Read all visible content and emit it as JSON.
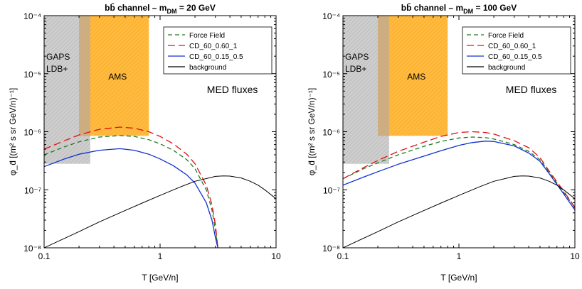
{
  "chart_data": [
    {
      "type": "line",
      "title": "bb̄ channel – m_DM = 20 GeV",
      "title_main": "bb̄ channel – m",
      "title_sub": "DM",
      "title_tail": " = 20 GeV",
      "xlabel": "T [GeV/n]",
      "ylabel": "φ_d̄ [(m² s sr GeV/n)⁻¹]",
      "xscale": "log",
      "yscale": "log",
      "xlim": [
        0.1,
        10
      ],
      "ylim": [
        1e-08,
        0.0001
      ],
      "x_tick_labels": [
        "0.1",
        "1",
        "10"
      ],
      "y_tick_labels": [
        "10⁻⁸",
        "10⁻⁷",
        "10⁻⁶",
        "10⁻⁵",
        "10⁻⁴"
      ],
      "annotation": "MED fluxes",
      "legend_position": "top-right",
      "regions": [
        {
          "name": "GAPS LDB+",
          "label_lines": [
            "GAPS",
            "LDB+"
          ],
          "x": [
            0.1,
            0.25
          ],
          "y": [
            2.8e-07,
            0.0001
          ],
          "color": "#c0c0c0"
        },
        {
          "name": "AMS",
          "label_lines": [
            "AMS"
          ],
          "x": [
            0.2,
            0.8
          ],
          "y": [
            8.5e-07,
            0.0001
          ],
          "color": "#ffae1a"
        }
      ],
      "series": [
        {
          "name": "Force Field",
          "color": "#1e7a1e",
          "dash": "dashed",
          "x": [
            0.1,
            0.15,
            0.2,
            0.3,
            0.45,
            0.6,
            0.8,
            1.0,
            1.3,
            1.7,
            2.0,
            2.5,
            2.8,
            3.0,
            3.15
          ],
          "y": [
            4e-07,
            5.5e-07,
            6.7e-07,
            8.1e-07,
            8.6e-07,
            8.3e-07,
            7.3e-07,
            6.2e-07,
            4.8e-07,
            3.3e-07,
            2.3e-07,
            1e-07,
            4.5e-08,
            2e-08,
            1e-08
          ]
        },
        {
          "name": "CD_60_0.60_1",
          "color": "#e01010",
          "dash": "longdash",
          "x": [
            0.1,
            0.15,
            0.2,
            0.3,
            0.45,
            0.6,
            0.8,
            1.0,
            1.3,
            1.7,
            2.0,
            2.5,
            2.8,
            3.0,
            3.15
          ],
          "y": [
            5e-07,
            7e-07,
            8.8e-07,
            1.1e-06,
            1.2e-06,
            1.15e-06,
            1e-06,
            8.3e-07,
            6.2e-07,
            4.1e-07,
            2.8e-07,
            1.2e-07,
            5.5e-08,
            2.5e-08,
            1e-08
          ]
        },
        {
          "name": "CD_60_0.15_0.5",
          "color": "#1030d0",
          "dash": "solid",
          "x": [
            0.1,
            0.15,
            0.2,
            0.3,
            0.45,
            0.6,
            0.8,
            1.0,
            1.3,
            1.7,
            2.0,
            2.5,
            2.8,
            3.0,
            3.15
          ],
          "y": [
            2.5e-07,
            3.4e-07,
            4.1e-07,
            4.8e-07,
            5.1e-07,
            4.8e-07,
            4.1e-07,
            3.4e-07,
            2.6e-07,
            1.8e-07,
            1.3e-07,
            6e-08,
            3e-08,
            1.5e-08,
            1e-08
          ]
        },
        {
          "name": "background",
          "color": "#000000",
          "dash": "solid",
          "x": [
            0.1,
            0.2,
            0.3,
            0.5,
            0.7,
            1.0,
            1.5,
            2.0,
            3.0,
            3.5,
            4.0,
            5.0,
            6.0,
            7.0,
            8.0,
            10.0
          ],
          "y": [
            1e-08,
            1.9e-08,
            2.8e-08,
            4.4e-08,
            5.9e-08,
            8e-08,
            1.12e-07,
            1.4e-07,
            1.7e-07,
            1.73e-07,
            1.72e-07,
            1.6e-07,
            1.4e-07,
            1.2e-07,
            1e-07,
            7e-08
          ]
        }
      ]
    },
    {
      "type": "line",
      "title": "bb̄ channel – m_DM = 100 GeV",
      "title_main": "bb̄ channel – m",
      "title_sub": "DM",
      "title_tail": " = 100 GeV",
      "xlabel": "T [GeV/n]",
      "ylabel": "φ_d̄ [(m² s sr GeV/n)⁻¹]",
      "xscale": "log",
      "yscale": "log",
      "xlim": [
        0.1,
        10
      ],
      "ylim": [
        1e-08,
        0.0001
      ],
      "x_tick_labels": [
        "0.1",
        "1",
        "10"
      ],
      "y_tick_labels": [
        "10⁻⁸",
        "10⁻⁷",
        "10⁻⁶",
        "10⁻⁵",
        "10⁻⁴"
      ],
      "annotation": "MED fluxes",
      "legend_position": "top-right",
      "regions": [
        {
          "name": "GAPS LDB+",
          "label_lines": [
            "GAPS",
            "LDB+"
          ],
          "x": [
            0.1,
            0.25
          ],
          "y": [
            2.8e-07,
            0.0001
          ],
          "color": "#c0c0c0"
        },
        {
          "name": "AMS",
          "label_lines": [
            "AMS"
          ],
          "x": [
            0.2,
            0.8
          ],
          "y": [
            8.5e-07,
            0.0001
          ],
          "color": "#ffae1a"
        }
      ],
      "series": [
        {
          "name": "Force Field",
          "color": "#1e7a1e",
          "dash": "dashed",
          "x": [
            0.1,
            0.15,
            0.2,
            0.3,
            0.5,
            0.7,
            1.0,
            1.3,
            1.7,
            2.0,
            3.0,
            4.0,
            5.0,
            6.0,
            8.0,
            10.0
          ],
          "y": [
            1.55e-07,
            2.3e-07,
            2.9e-07,
            4e-07,
            5.6e-07,
            6.8e-07,
            7.8e-07,
            8.1e-07,
            7.9e-07,
            7.5e-07,
            6e-07,
            4.6e-07,
            3.3e-07,
            2e-07,
            9e-08,
            5e-08
          ]
        },
        {
          "name": "CD_60_0.60_1",
          "color": "#e01010",
          "dash": "longdash",
          "x": [
            0.1,
            0.15,
            0.2,
            0.3,
            0.5,
            0.7,
            1.0,
            1.3,
            1.7,
            2.0,
            3.0,
            4.0,
            5.0,
            6.0,
            8.0,
            10.0
          ],
          "y": [
            1.55e-07,
            2.4e-07,
            3.2e-07,
            4.6e-07,
            6.6e-07,
            8.3e-07,
            9.7e-07,
            1e-06,
            9.7e-07,
            9.1e-07,
            7e-07,
            5.3e-07,
            3.6e-07,
            2.1e-07,
            9.5e-08,
            5e-08
          ]
        },
        {
          "name": "CD_60_0.15_0.5",
          "color": "#1030d0",
          "dash": "solid",
          "x": [
            0.1,
            0.15,
            0.2,
            0.3,
            0.5,
            0.7,
            1.0,
            1.3,
            1.7,
            2.0,
            3.0,
            4.0,
            5.0,
            6.0,
            8.0,
            10.0
          ],
          "y": [
            1.2e-07,
            1.65e-07,
            2.05e-07,
            2.75e-07,
            3.8e-07,
            4.7e-07,
            5.8e-07,
            6.5e-07,
            6.9e-07,
            6.8e-07,
            5.7e-07,
            4.3e-07,
            3.1e-07,
            1.9e-07,
            8.5e-08,
            4.5e-08
          ]
        },
        {
          "name": "background",
          "color": "#000000",
          "dash": "solid",
          "x": [
            0.1,
            0.2,
            0.3,
            0.5,
            0.7,
            1.0,
            1.5,
            2.0,
            3.0,
            3.5,
            4.0,
            5.0,
            6.0,
            7.0,
            8.0,
            10.0
          ],
          "y": [
            1e-08,
            1.9e-08,
            2.8e-08,
            4.4e-08,
            5.9e-08,
            8e-08,
            1.12e-07,
            1.4e-07,
            1.7e-07,
            1.73e-07,
            1.72e-07,
            1.6e-07,
            1.4e-07,
            1.2e-07,
            1e-07,
            7e-08
          ]
        }
      ]
    }
  ]
}
